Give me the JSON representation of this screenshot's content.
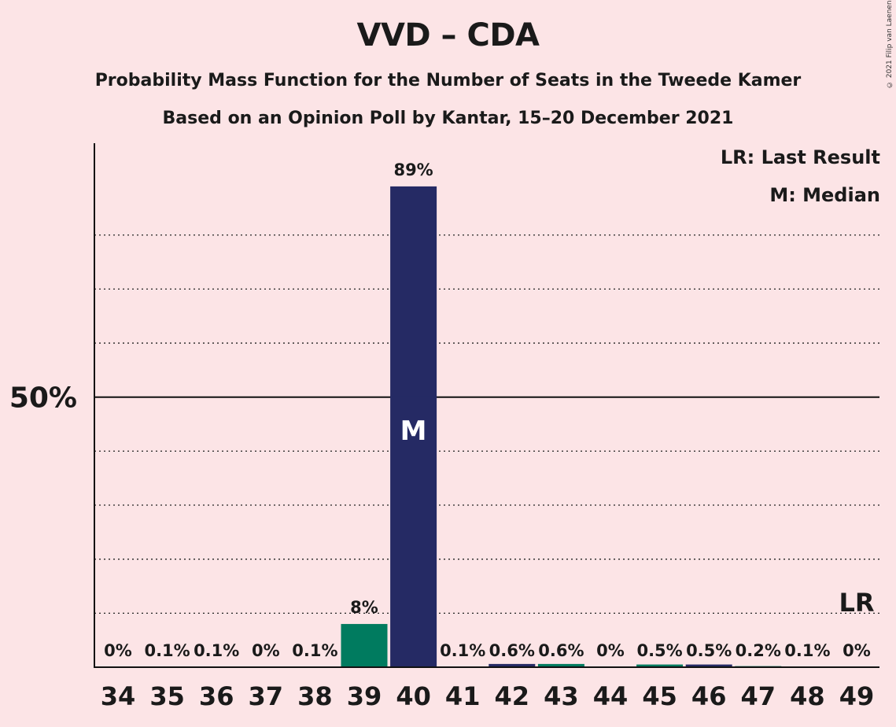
{
  "title": "VVD – CDA",
  "subtitle1": "Probability Mass Function for the Number of Seats in the Tweede Kamer",
  "subtitle2": "Based on an Opinion Poll by Kantar, 15–20 December 2021",
  "copyright": "© 2021 Filip van Laenen",
  "legend": {
    "lr": "LR: Last Result",
    "m": "M: Median"
  },
  "colors": {
    "vvd": "#252a64",
    "cda": "#007b5f",
    "background": "#fce4e6"
  },
  "chart_data": {
    "type": "bar",
    "categories": [
      "34",
      "35",
      "36",
      "37",
      "38",
      "39",
      "40",
      "41",
      "42",
      "43",
      "44",
      "45",
      "46",
      "47",
      "48",
      "49"
    ],
    "values": [
      0,
      0.1,
      0.1,
      0,
      0.1,
      8,
      89,
      0.1,
      0.6,
      0.6,
      0,
      0.5,
      0.5,
      0.2,
      0.1,
      0
    ],
    "labels": [
      "0%",
      "0.1%",
      "0.1%",
      "0%",
      "0.1%",
      "8%",
      "89%",
      "0.1%",
      "0.6%",
      "0.6%",
      "0%",
      "0.5%",
      "0.5%",
      "0.2%",
      "0.1%",
      "0%"
    ],
    "bar_colors": [
      "vvd",
      "cda",
      "vvd",
      "cda",
      "vvd",
      "cda",
      "vvd",
      "cda",
      "vvd",
      "cda",
      "vvd",
      "cda",
      "vvd",
      "cda",
      "vvd",
      "cda"
    ],
    "ylim": [
      0,
      97
    ],
    "yticks": [
      50
    ],
    "ytick_labels": [
      "50%"
    ],
    "gridlines": [
      10,
      20,
      30,
      40,
      60,
      70,
      80
    ],
    "median_category": "40",
    "median_marker": "M",
    "last_result_category": "49",
    "last_result_marker": "LR"
  }
}
